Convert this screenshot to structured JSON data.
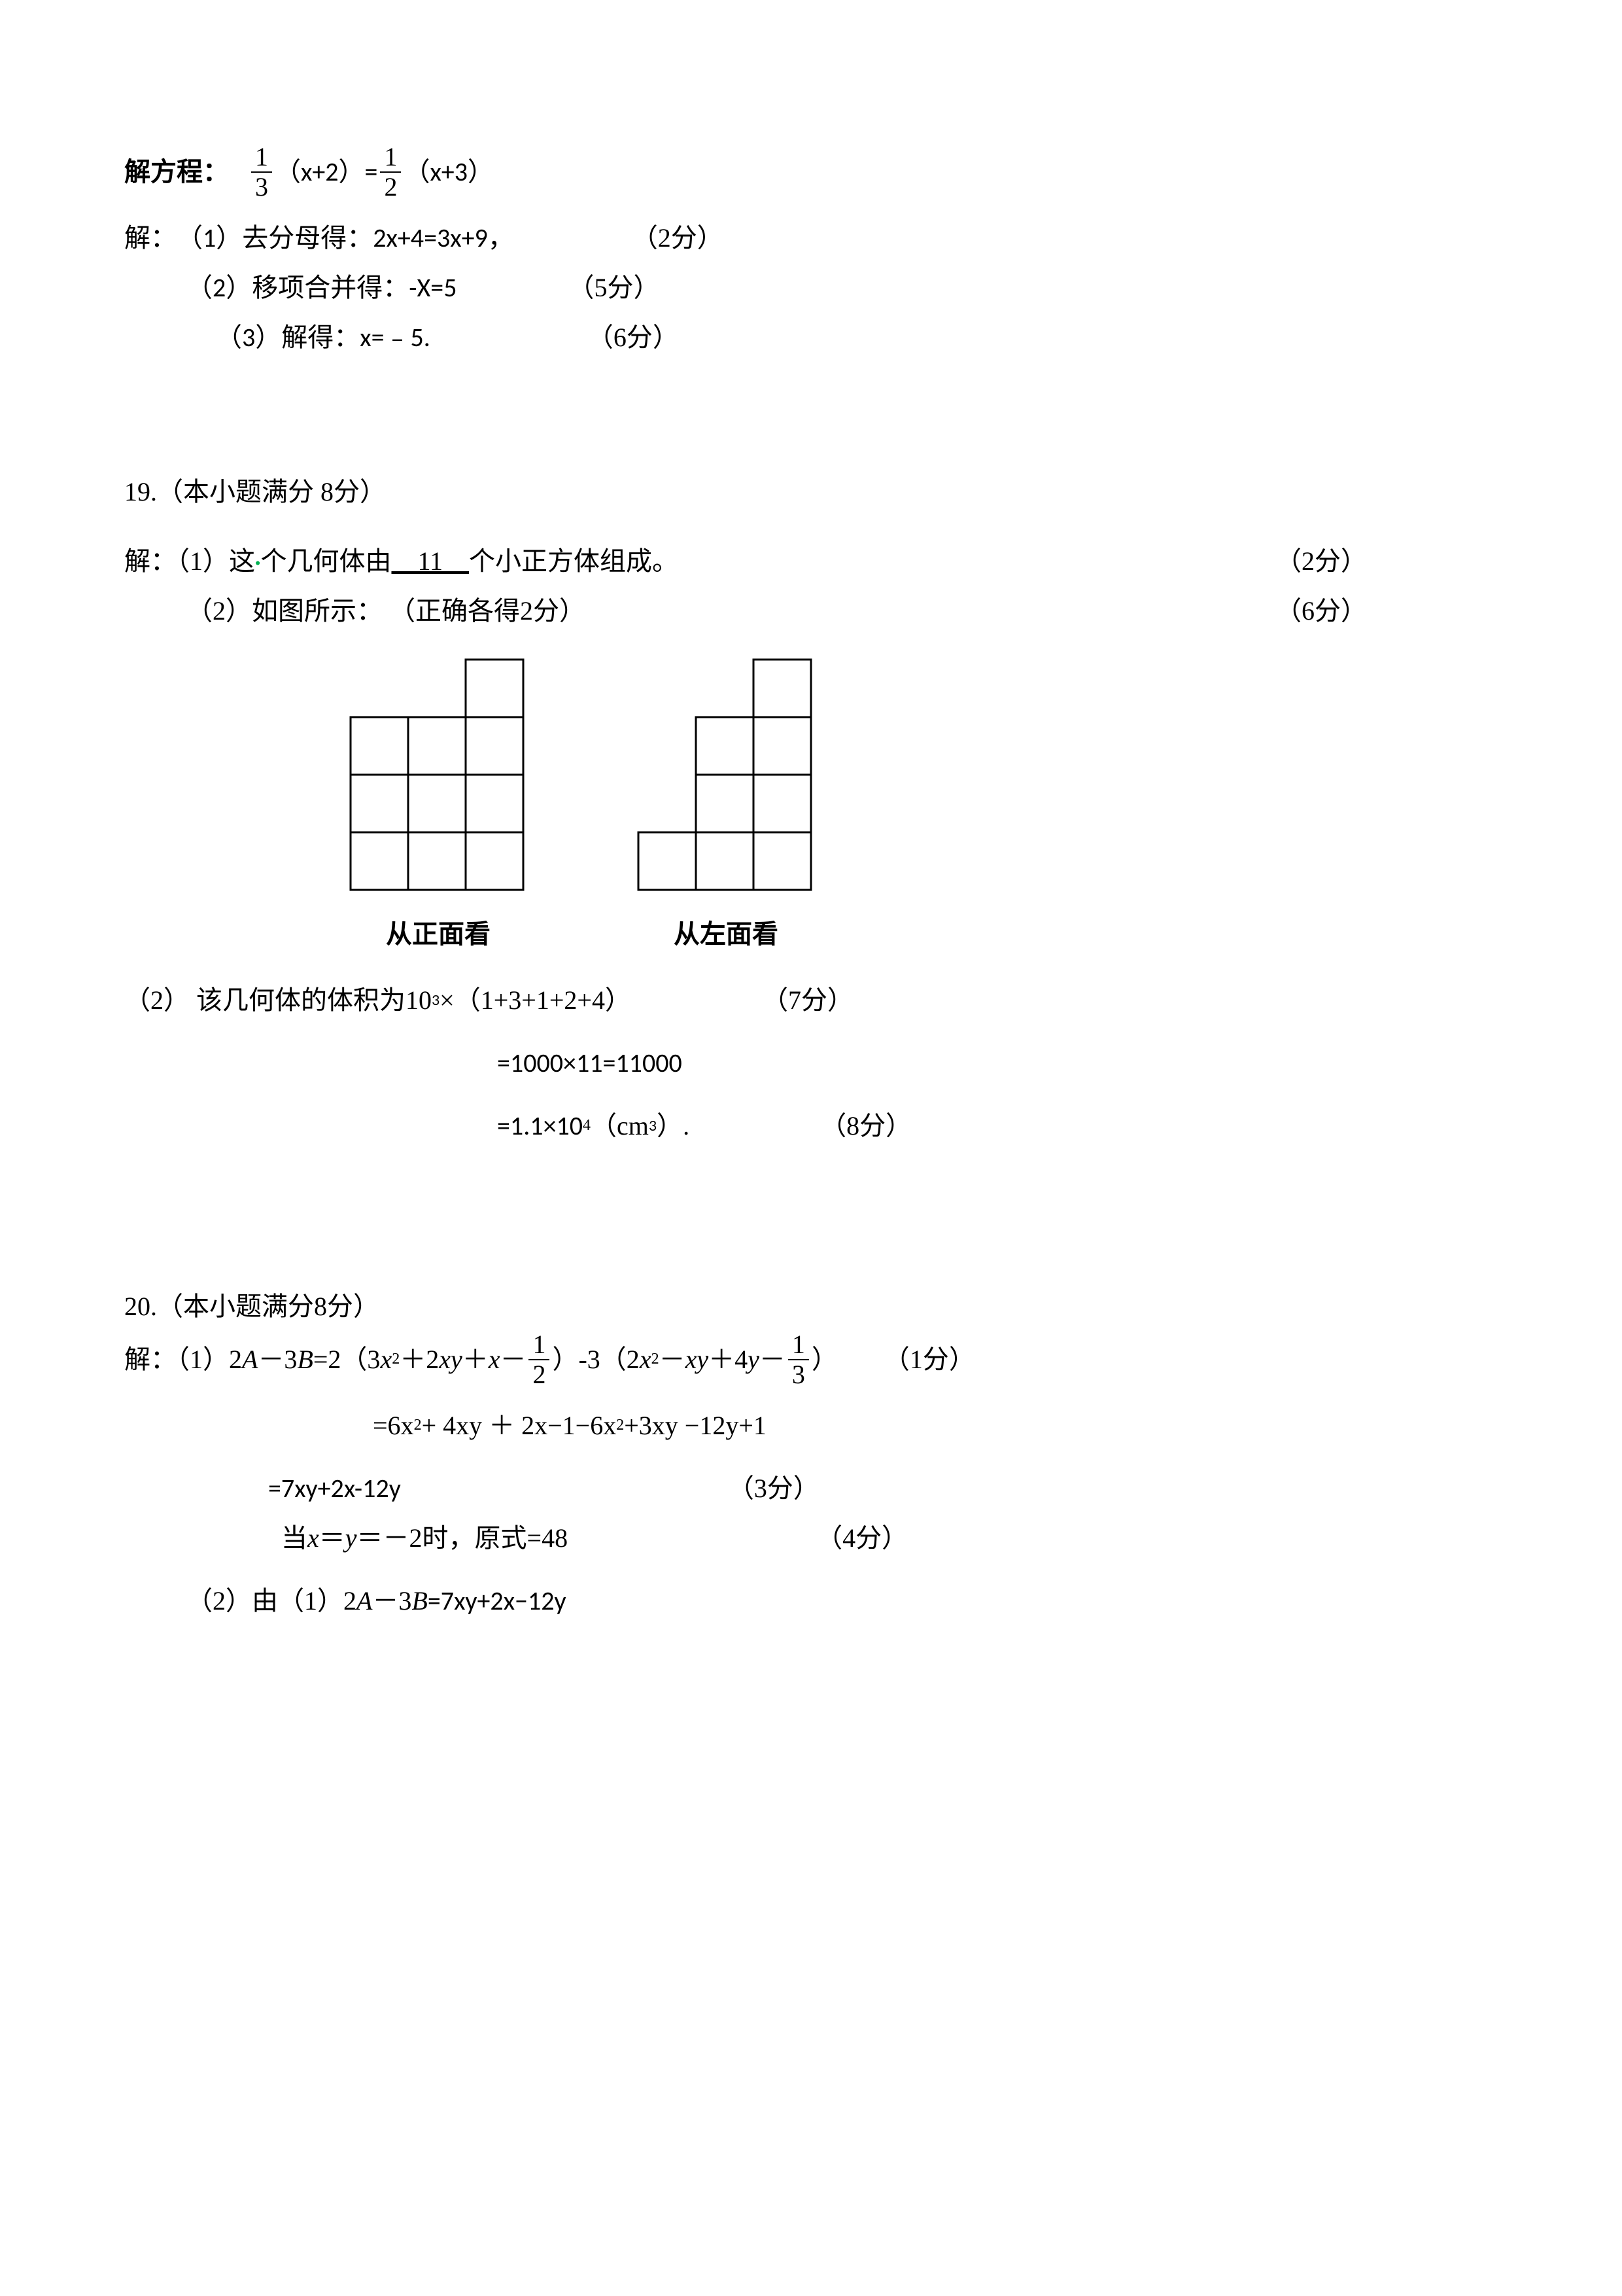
{
  "q18": {
    "title_prefix": "解方程：",
    "eq_left_frac": {
      "num": "1",
      "den": "3"
    },
    "eq_left_paren": "（x+2）=",
    "eq_right_frac": {
      "num": "1",
      "den": "2"
    },
    "eq_right_paren": "（x+3）",
    "sol_label": "解：",
    "step1": "（1）去分母得：2x+4=3x+9，",
    "step1_score": "（2分）",
    "step2": "（2）移项合并得：-X=5",
    "step2_score": "（5分）",
    "step3": "（3）解得：x=﹣5.",
    "step3_score": "（6分）"
  },
  "q19": {
    "heading": "19.（本小题满分 8分）",
    "line1_a": "解：（1）这",
    "dot_color": "#00b050",
    "line1_b": "个几何体由",
    "blank": "    11    ",
    "line1_c": "个小正方体组成。",
    "line1_score": "（2分）",
    "line2": "（2）如图所示：   （正确各得2分）",
    "line2_score": "（6分）",
    "front_label": "从正面看",
    "left_label": "从左面看",
    "grid": {
      "cell": 88,
      "stroke": "#000000",
      "stroke_width": 3,
      "front_cells": [
        {
          "c": 2,
          "r": 0
        },
        {
          "c": 0,
          "r": 1
        },
        {
          "c": 1,
          "r": 1
        },
        {
          "c": 2,
          "r": 1
        },
        {
          "c": 0,
          "r": 2
        },
        {
          "c": 1,
          "r": 2
        },
        {
          "c": 2,
          "r": 2
        },
        {
          "c": 0,
          "r": 3
        },
        {
          "c": 1,
          "r": 3
        },
        {
          "c": 2,
          "r": 3
        }
      ],
      "left_cells": [
        {
          "c": 2,
          "r": 0
        },
        {
          "c": 1,
          "r": 1
        },
        {
          "c": 2,
          "r": 1
        },
        {
          "c": 1,
          "r": 2
        },
        {
          "c": 2,
          "r": 2
        },
        {
          "c": 0,
          "r": 3
        },
        {
          "c": 1,
          "r": 3
        },
        {
          "c": 2,
          "r": 3
        }
      ]
    },
    "vol_line1_a": "（2） 该几何体的体积为10",
    "vol_line1_sup": "3",
    "vol_line1_b": "×（1+3+1+2+4）",
    "vol_line1_score": "（7分）",
    "vol_line2": "=1000×11=11000",
    "vol_line3_a": "=1.1×10",
    "vol_line3_sup": "4",
    "vol_line3_b": "（cm",
    "vol_line3_sup2": "3",
    "vol_line3_c": "）.",
    "vol_line3_score": "（8分）"
  },
  "q20": {
    "heading": "20.（本小题满分8分）",
    "l1_a": "解：（1）2",
    "l1_A": "A",
    "l1_minus": "－3",
    "l1_B": "B",
    "l1_eq": "=2（3",
    "l1_x2": "x",
    "l1_sup2a": "2",
    "l1_p2xy": "＋2",
    "l1_xy": "xy",
    "l1_plusx": "＋",
    "l1_x": "x",
    "l1_m": "－",
    "l1_frac1": {
      "num": "1",
      "den": "2"
    },
    "l1_close1": "）-3（2",
    "l1_x2b": "x",
    "l1_sup2b": "2",
    "l1_mxy": "－",
    "l1_xy2": "xy",
    "l1_p4y": "＋4",
    "l1_y": "y",
    "l1_m2": "－",
    "l1_frac2": {
      "num": "1",
      "den": "3"
    },
    "l1_close2": "）",
    "l1_score": "（1分）",
    "l2_a": "=6x",
    "l2_sup": "2",
    "l2_b": "+ 4xy ＋ 2x−1−6x",
    "l2_sup2": "2",
    "l2_c": "+3xy −12y+1",
    "l3": "=7xy+2x-12y",
    "l3_score": "（3分）",
    "l4_a": "当",
    "l4_x": "x",
    "l4_eq": "＝",
    "l4_y": "y",
    "l4_b": "＝－2时，原式=48",
    "l4_score": "（4分）",
    "l5_a": "（2）由（1）2",
    "l5_A": "A",
    "l5_m": "－3",
    "l5_B": "B",
    "l5_eq": "=7xy+2x−12y"
  }
}
